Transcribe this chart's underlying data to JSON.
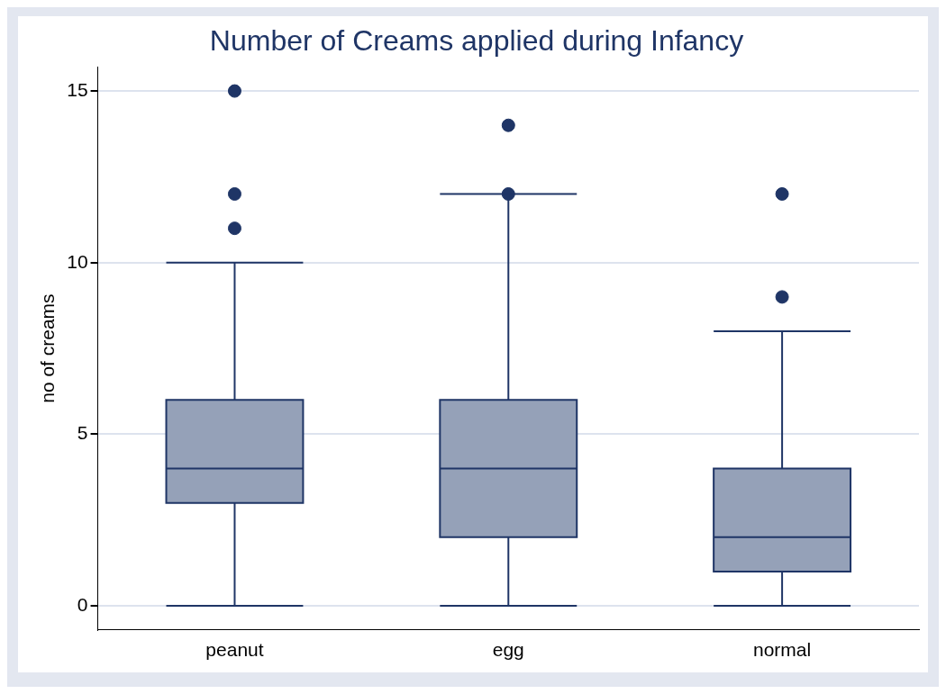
{
  "chart_data": {
    "type": "box",
    "title": "Number of Creams applied during Infancy",
    "ylabel": "no of creams",
    "categories": [
      "peanut",
      "egg",
      "normal"
    ],
    "color": "#95a1b8",
    "boxes": [
      {
        "low": 0,
        "q1": 3,
        "median": 4,
        "q3": 6,
        "high": 10,
        "outliers": [
          11,
          12,
          15
        ]
      },
      {
        "low": 0,
        "q1": 2,
        "median": 4,
        "q3": 6,
        "high": 12,
        "outliers": [
          12,
          14
        ]
      },
      {
        "low": 0,
        "q1": 1,
        "median": 2,
        "q3": 4,
        "high": 8,
        "outliers": [
          9,
          12
        ]
      }
    ],
    "ylim": [
      -0.7,
      15.7
    ],
    "yticks": [
      0,
      5,
      10,
      15
    ],
    "grid": "y",
    "legend": false
  }
}
